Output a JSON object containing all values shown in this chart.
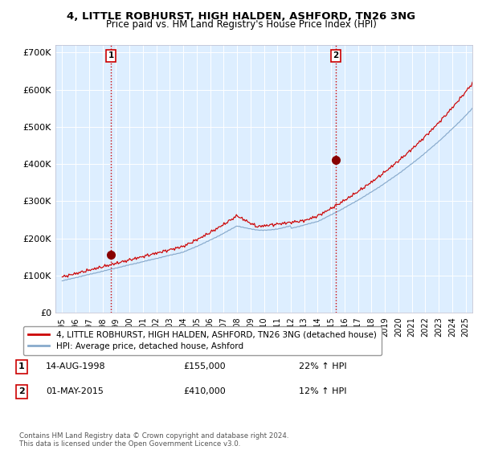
{
  "title": "4, LITTLE ROBHURST, HIGH HALDEN, ASHFORD, TN26 3NG",
  "subtitle": "Price paid vs. HM Land Registry's House Price Index (HPI)",
  "xlim": [
    1994.5,
    2025.5
  ],
  "ylim": [
    0,
    720000
  ],
  "yticks": [
    0,
    100000,
    200000,
    300000,
    400000,
    500000,
    600000,
    700000
  ],
  "ytick_labels": [
    "£0",
    "£100K",
    "£200K",
    "£300K",
    "£400K",
    "£500K",
    "£600K",
    "£700K"
  ],
  "xticks": [
    1995,
    1996,
    1997,
    1998,
    1999,
    2000,
    2001,
    2002,
    2003,
    2004,
    2005,
    2006,
    2007,
    2008,
    2009,
    2010,
    2011,
    2012,
    2013,
    2014,
    2015,
    2016,
    2017,
    2018,
    2019,
    2020,
    2021,
    2022,
    2023,
    2024,
    2025
  ],
  "sale1_x": 1998.62,
  "sale1_y": 155000,
  "sale1_label": "1",
  "sale2_x": 2015.33,
  "sale2_y": 410000,
  "sale2_label": "2",
  "vline_color": "#cc0000",
  "marker_color": "#880000",
  "red_line_color": "#cc0000",
  "blue_line_color": "#88aacc",
  "plot_bg": "#ddeeff",
  "grid_color": "#ffffff",
  "legend_label_red": "4, LITTLE ROBHURST, HIGH HALDEN, ASHFORD, TN26 3NG (detached house)",
  "legend_label_blue": "HPI: Average price, detached house, Ashford",
  "table_row1": [
    "1",
    "14-AUG-1998",
    "£155,000",
    "22% ↑ HPI"
  ],
  "table_row2": [
    "2",
    "01-MAY-2015",
    "£410,000",
    "12% ↑ HPI"
  ],
  "footnote": "Contains HM Land Registry data © Crown copyright and database right 2024.\nThis data is licensed under the Open Government Licence v3.0."
}
